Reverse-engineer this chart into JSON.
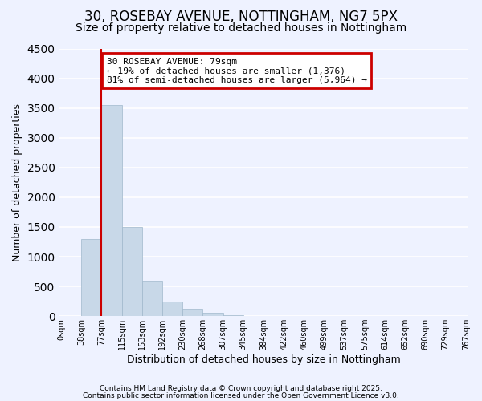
{
  "title": "30, ROSEBAY AVENUE, NOTTINGHAM, NG7 5PX",
  "subtitle": "Size of property relative to detached houses in Nottingham",
  "xlabel": "Distribution of detached houses by size in Nottingham",
  "ylabel": "Number of detached properties",
  "bar_values": [
    0,
    1300,
    3550,
    1500,
    600,
    240,
    120,
    60,
    15,
    5,
    2,
    0,
    0,
    0,
    0,
    0,
    0,
    0,
    0,
    0
  ],
  "bin_labels": [
    "0sqm",
    "38sqm",
    "77sqm",
    "115sqm",
    "153sqm",
    "192sqm",
    "230sqm",
    "268sqm",
    "307sqm",
    "345sqm",
    "384sqm",
    "422sqm",
    "460sqm",
    "499sqm",
    "537sqm",
    "575sqm",
    "614sqm",
    "652sqm",
    "690sqm",
    "729sqm",
    "767sqm"
  ],
  "bar_color": "#c8d8e8",
  "bar_edge_color": "#a0b8cc",
  "property_line_bin_index": 2,
  "annotation_text": "30 ROSEBAY AVENUE: 79sqm\n← 19% of detached houses are smaller (1,376)\n81% of semi-detached houses are larger (5,964) →",
  "annotation_box_color": "#ffffff",
  "annotation_box_edge_color": "#cc0000",
  "ylim": [
    0,
    4500
  ],
  "footnote1": "Contains HM Land Registry data © Crown copyright and database right 2025.",
  "footnote2": "Contains public sector information licensed under the Open Government Licence v3.0.",
  "bg_color": "#eef2ff",
  "grid_color": "#ffffff",
  "title_fontsize": 12,
  "subtitle_fontsize": 10
}
